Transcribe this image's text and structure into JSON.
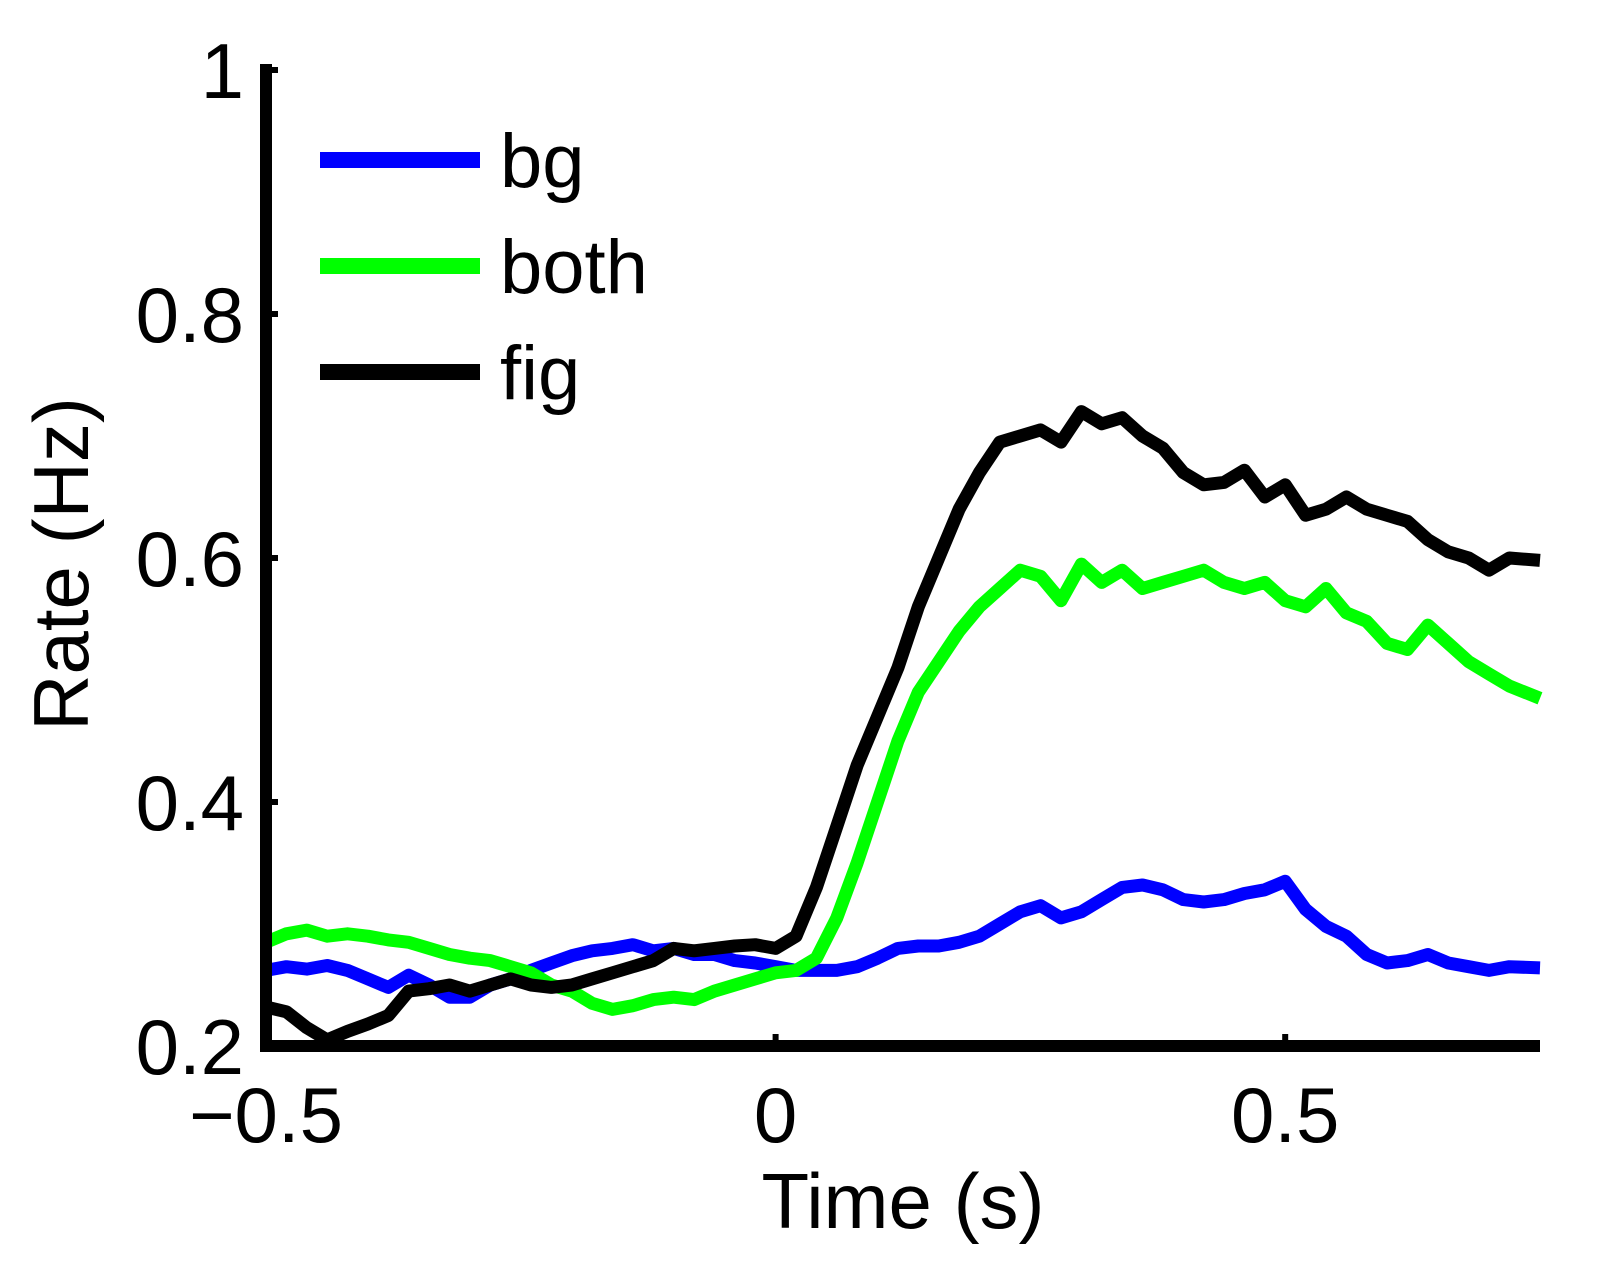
{
  "chart_data": {
    "type": "line",
    "title": "",
    "xlabel": "Time (s)",
    "ylabel": "Rate (Hz)",
    "xlim": [
      -0.5,
      0.75
    ],
    "ylim": [
      0.2,
      1.0
    ],
    "x_ticks": [
      -0.5,
      0,
      0.5
    ],
    "x_tick_labels": [
      "−0.5",
      "0",
      "0.5"
    ],
    "y_ticks": [
      0.2,
      0.4,
      0.6,
      0.8,
      1.0
    ],
    "y_tick_labels": [
      "0.2",
      "0.4",
      "0.6",
      "0.8",
      "1"
    ],
    "grid": false,
    "legend_position": "top-left",
    "series": [
      {
        "name": "bg",
        "color": "#0000ff",
        "points": [
          [
            -0.5,
            0.262
          ],
          [
            -0.48,
            0.265
          ],
          [
            -0.46,
            0.263
          ],
          [
            -0.44,
            0.266
          ],
          [
            -0.42,
            0.262
          ],
          [
            -0.4,
            0.255
          ],
          [
            -0.38,
            0.248
          ],
          [
            -0.36,
            0.258
          ],
          [
            -0.34,
            0.25
          ],
          [
            -0.32,
            0.24
          ],
          [
            -0.3,
            0.24
          ],
          [
            -0.28,
            0.25
          ],
          [
            -0.26,
            0.255
          ],
          [
            -0.24,
            0.262
          ],
          [
            -0.22,
            0.268
          ],
          [
            -0.2,
            0.274
          ],
          [
            -0.18,
            0.278
          ],
          [
            -0.16,
            0.28
          ],
          [
            -0.14,
            0.283
          ],
          [
            -0.12,
            0.278
          ],
          [
            -0.1,
            0.28
          ],
          [
            -0.08,
            0.275
          ],
          [
            -0.06,
            0.275
          ],
          [
            -0.04,
            0.27
          ],
          [
            -0.02,
            0.268
          ],
          [
            0.0,
            0.265
          ],
          [
            0.02,
            0.262
          ],
          [
            0.04,
            0.262
          ],
          [
            0.06,
            0.262
          ],
          [
            0.08,
            0.265
          ],
          [
            0.1,
            0.272
          ],
          [
            0.12,
            0.28
          ],
          [
            0.14,
            0.282
          ],
          [
            0.16,
            0.282
          ],
          [
            0.18,
            0.285
          ],
          [
            0.2,
            0.29
          ],
          [
            0.22,
            0.3
          ],
          [
            0.24,
            0.31
          ],
          [
            0.26,
            0.315
          ],
          [
            0.28,
            0.305
          ],
          [
            0.3,
            0.31
          ],
          [
            0.32,
            0.32
          ],
          [
            0.34,
            0.33
          ],
          [
            0.36,
            0.332
          ],
          [
            0.38,
            0.328
          ],
          [
            0.4,
            0.32
          ],
          [
            0.42,
            0.318
          ],
          [
            0.44,
            0.32
          ],
          [
            0.46,
            0.325
          ],
          [
            0.48,
            0.328
          ],
          [
            0.5,
            0.335
          ],
          [
            0.52,
            0.312
          ],
          [
            0.54,
            0.298
          ],
          [
            0.56,
            0.29
          ],
          [
            0.58,
            0.275
          ],
          [
            0.6,
            0.268
          ],
          [
            0.62,
            0.27
          ],
          [
            0.64,
            0.275
          ],
          [
            0.66,
            0.268
          ],
          [
            0.68,
            0.265
          ],
          [
            0.7,
            0.262
          ],
          [
            0.72,
            0.265
          ],
          [
            0.75,
            0.264
          ]
        ]
      },
      {
        "name": "both",
        "color": "#00ff00",
        "points": [
          [
            -0.5,
            0.285
          ],
          [
            -0.48,
            0.292
          ],
          [
            -0.46,
            0.295
          ],
          [
            -0.44,
            0.29
          ],
          [
            -0.42,
            0.292
          ],
          [
            -0.4,
            0.29
          ],
          [
            -0.38,
            0.287
          ],
          [
            -0.36,
            0.285
          ],
          [
            -0.34,
            0.28
          ],
          [
            -0.32,
            0.275
          ],
          [
            -0.3,
            0.272
          ],
          [
            -0.28,
            0.27
          ],
          [
            -0.26,
            0.265
          ],
          [
            -0.24,
            0.26
          ],
          [
            -0.22,
            0.25
          ],
          [
            -0.2,
            0.245
          ],
          [
            -0.18,
            0.235
          ],
          [
            -0.16,
            0.23
          ],
          [
            -0.14,
            0.233
          ],
          [
            -0.12,
            0.238
          ],
          [
            -0.1,
            0.24
          ],
          [
            -0.08,
            0.238
          ],
          [
            -0.06,
            0.245
          ],
          [
            -0.04,
            0.25
          ],
          [
            -0.02,
            0.255
          ],
          [
            0.0,
            0.26
          ],
          [
            0.02,
            0.262
          ],
          [
            0.04,
            0.272
          ],
          [
            0.06,
            0.305
          ],
          [
            0.08,
            0.35
          ],
          [
            0.1,
            0.4
          ],
          [
            0.12,
            0.45
          ],
          [
            0.14,
            0.49
          ],
          [
            0.16,
            0.515
          ],
          [
            0.18,
            0.54
          ],
          [
            0.2,
            0.56
          ],
          [
            0.22,
            0.575
          ],
          [
            0.24,
            0.59
          ],
          [
            0.26,
            0.585
          ],
          [
            0.28,
            0.565
          ],
          [
            0.3,
            0.595
          ],
          [
            0.32,
            0.58
          ],
          [
            0.34,
            0.59
          ],
          [
            0.36,
            0.575
          ],
          [
            0.38,
            0.58
          ],
          [
            0.4,
            0.585
          ],
          [
            0.42,
            0.59
          ],
          [
            0.44,
            0.58
          ],
          [
            0.46,
            0.575
          ],
          [
            0.48,
            0.58
          ],
          [
            0.5,
            0.565
          ],
          [
            0.52,
            0.56
          ],
          [
            0.54,
            0.575
          ],
          [
            0.56,
            0.555
          ],
          [
            0.58,
            0.548
          ],
          [
            0.6,
            0.53
          ],
          [
            0.62,
            0.525
          ],
          [
            0.64,
            0.545
          ],
          [
            0.66,
            0.53
          ],
          [
            0.68,
            0.515
          ],
          [
            0.7,
            0.505
          ],
          [
            0.72,
            0.495
          ],
          [
            0.75,
            0.485
          ]
        ]
      },
      {
        "name": "fig",
        "color": "#000000",
        "points": [
          [
            -0.5,
            0.232
          ],
          [
            -0.48,
            0.228
          ],
          [
            -0.46,
            0.215
          ],
          [
            -0.44,
            0.205
          ],
          [
            -0.42,
            0.212
          ],
          [
            -0.4,
            0.218
          ],
          [
            -0.38,
            0.225
          ],
          [
            -0.36,
            0.245
          ],
          [
            -0.34,
            0.247
          ],
          [
            -0.32,
            0.25
          ],
          [
            -0.3,
            0.245
          ],
          [
            -0.28,
            0.25
          ],
          [
            -0.26,
            0.255
          ],
          [
            -0.24,
            0.25
          ],
          [
            -0.22,
            0.248
          ],
          [
            -0.2,
            0.25
          ],
          [
            -0.18,
            0.255
          ],
          [
            -0.16,
            0.26
          ],
          [
            -0.14,
            0.265
          ],
          [
            -0.12,
            0.27
          ],
          [
            -0.1,
            0.28
          ],
          [
            -0.08,
            0.278
          ],
          [
            -0.06,
            0.28
          ],
          [
            -0.04,
            0.282
          ],
          [
            -0.02,
            0.283
          ],
          [
            0.0,
            0.28
          ],
          [
            0.02,
            0.29
          ],
          [
            0.04,
            0.33
          ],
          [
            0.06,
            0.38
          ],
          [
            0.08,
            0.43
          ],
          [
            0.1,
            0.47
          ],
          [
            0.12,
            0.51
          ],
          [
            0.14,
            0.56
          ],
          [
            0.16,
            0.6
          ],
          [
            0.18,
            0.64
          ],
          [
            0.2,
            0.67
          ],
          [
            0.22,
            0.695
          ],
          [
            0.24,
            0.7
          ],
          [
            0.26,
            0.705
          ],
          [
            0.28,
            0.695
          ],
          [
            0.3,
            0.72
          ],
          [
            0.32,
            0.71
          ],
          [
            0.34,
            0.715
          ],
          [
            0.36,
            0.7
          ],
          [
            0.38,
            0.69
          ],
          [
            0.4,
            0.67
          ],
          [
            0.42,
            0.66
          ],
          [
            0.44,
            0.662
          ],
          [
            0.46,
            0.672
          ],
          [
            0.48,
            0.65
          ],
          [
            0.5,
            0.66
          ],
          [
            0.52,
            0.635
          ],
          [
            0.54,
            0.64
          ],
          [
            0.56,
            0.65
          ],
          [
            0.58,
            0.64
          ],
          [
            0.6,
            0.635
          ],
          [
            0.62,
            0.63
          ],
          [
            0.64,
            0.615
          ],
          [
            0.66,
            0.605
          ],
          [
            0.68,
            0.6
          ],
          [
            0.7,
            0.59
          ],
          [
            0.72,
            0.6
          ],
          [
            0.75,
            0.598
          ]
        ]
      }
    ]
  }
}
